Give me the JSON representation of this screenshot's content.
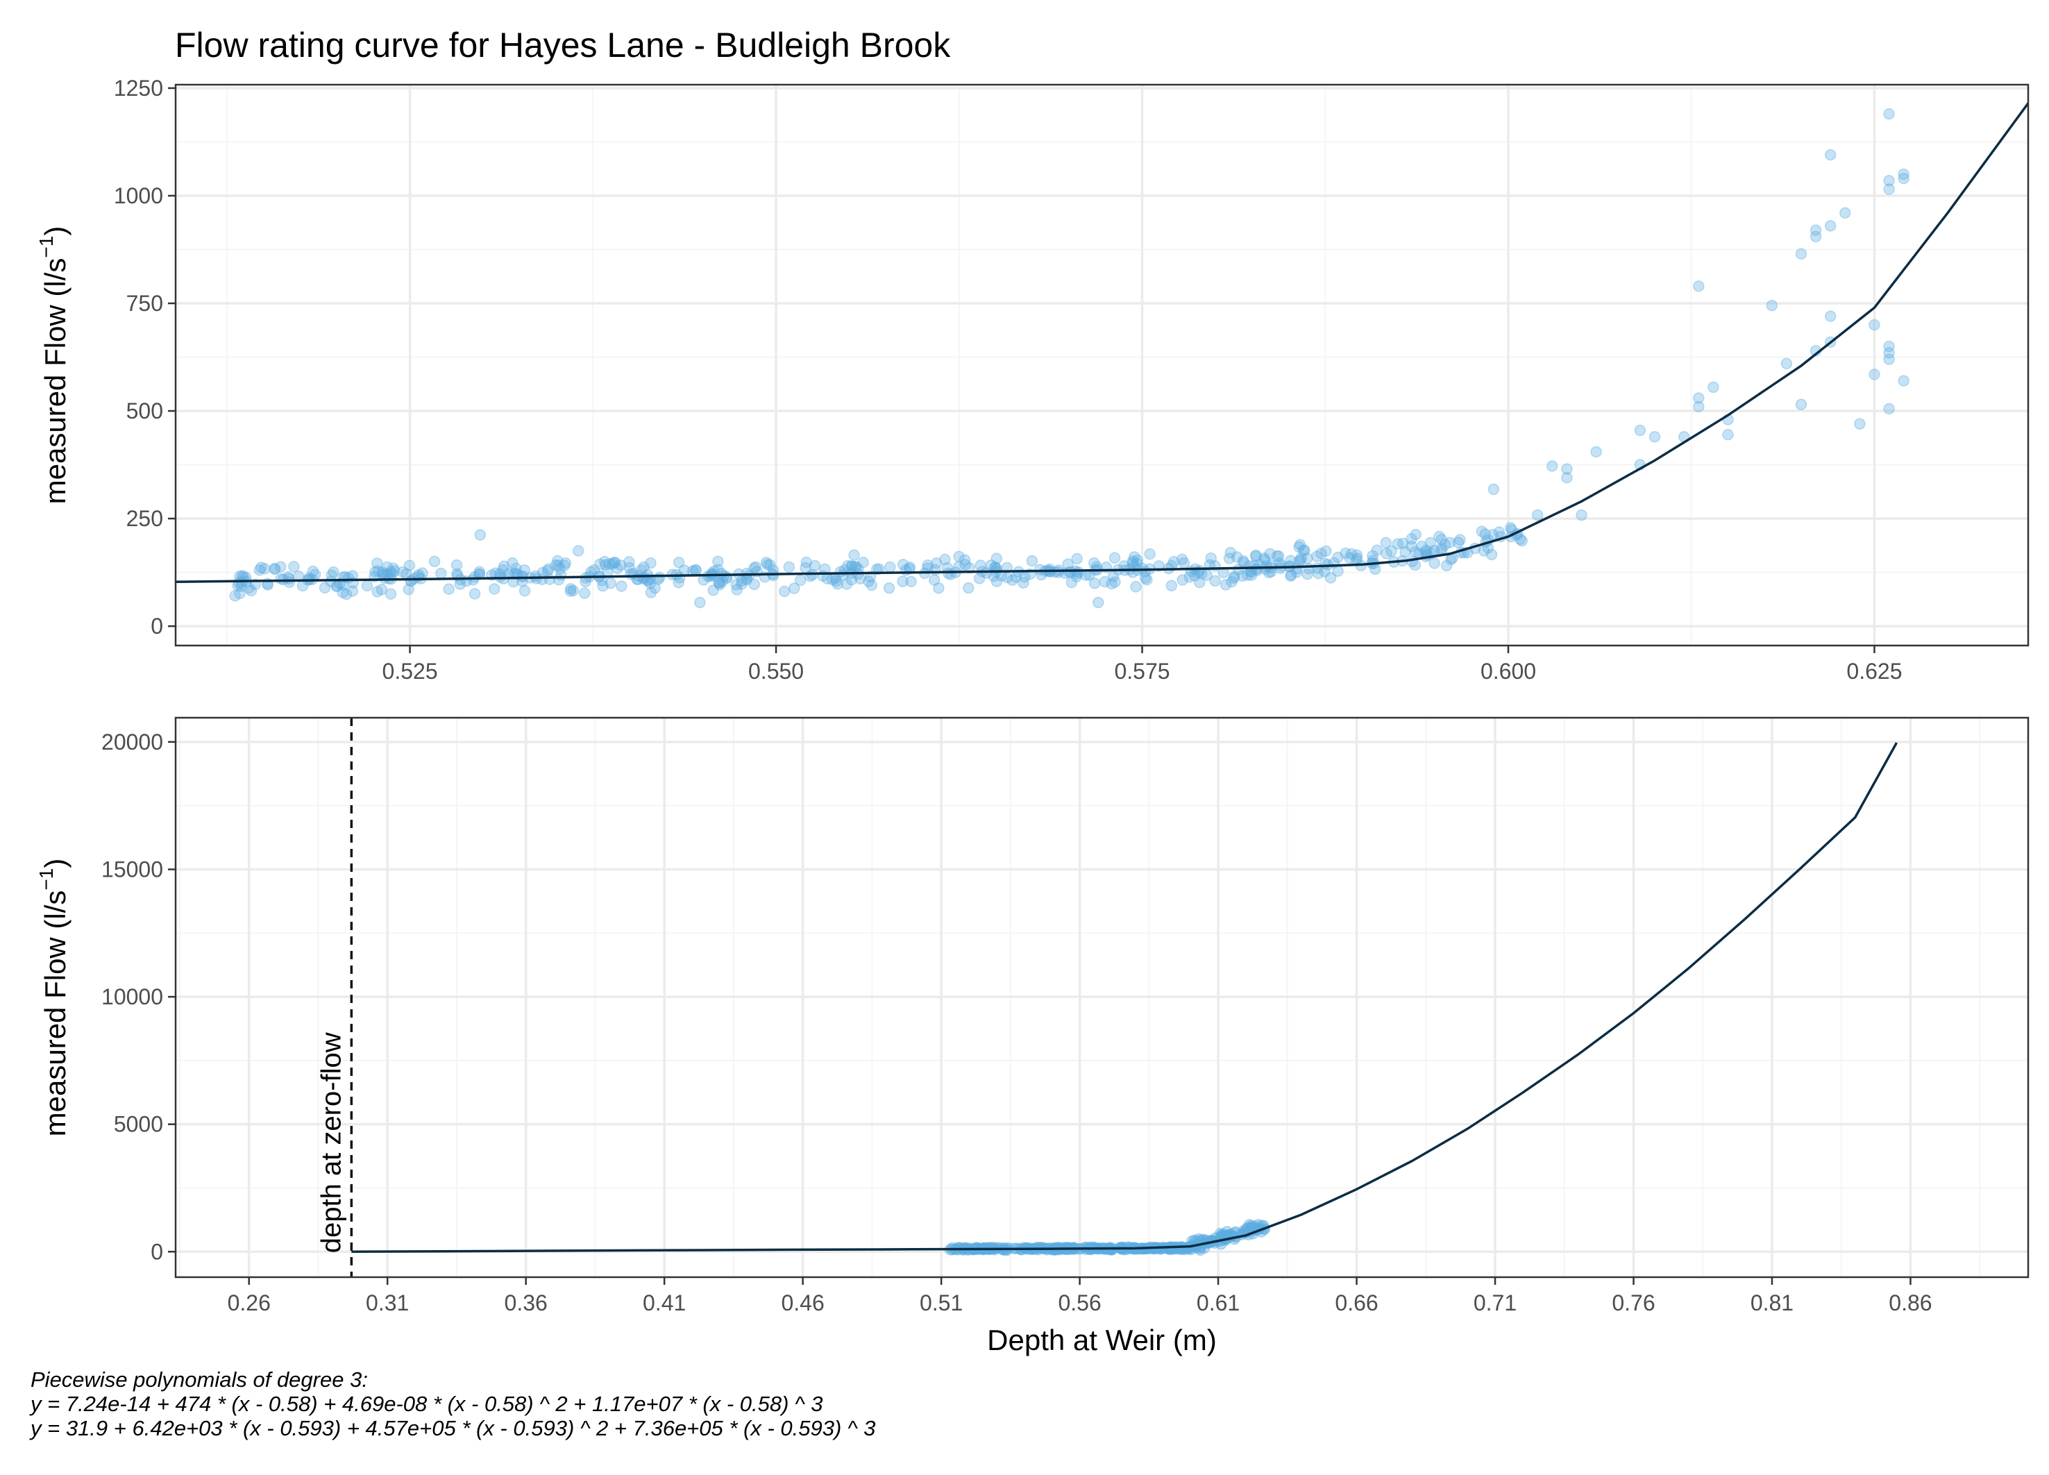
{
  "title": "Flow rating curve for Hayes Lane - Budleigh Brook",
  "caption": {
    "heading": "Piecewise polynomials of degree 3:",
    "line1": "y = 7.24e-14 + 474 * (x - 0.58) + 4.69e-08 * (x - 0.58) ^ 2 + 1.17e+07 * (x - 0.58) ^ 3",
    "line2": "y = 31.9 + 6.42e+03 * (x - 0.593) + 4.57e+05 * (x - 0.593) ^ 2 + 7.36e+05 * (x - 0.593) ^ 3"
  },
  "colors": {
    "points": "#5DADE2",
    "curve": "#0B2D45",
    "grid_major": "#EBEBEB",
    "grid_minor": "#F5F5F5",
    "border": "#333333"
  },
  "chart_data": [
    {
      "type": "scatter",
      "panel": "top",
      "ylabel": "measured Flow",
      "ylabel_unit": "(l/s",
      "ylabel_exp": "−1",
      "ylabel_close": ")",
      "xlabel": "",
      "xlim": [
        0.509,
        0.6355
      ],
      "ylim": [
        -45,
        1258
      ],
      "xticks": [
        0.525,
        0.55,
        0.575,
        0.6,
        0.625
      ],
      "xtick_labels": [
        "0.525",
        "0.550",
        "0.575",
        "0.600",
        "0.625"
      ],
      "yticks": [
        0,
        250,
        500,
        750,
        1000,
        1250
      ],
      "ytick_labels": [
        "0",
        "250",
        "500",
        "750",
        "1000",
        "1250"
      ],
      "grid": true,
      "curve": {
        "x": [
          0.509,
          0.52,
          0.53,
          0.54,
          0.55,
          0.56,
          0.57,
          0.575,
          0.58,
          0.585,
          0.59,
          0.593,
          0.596,
          0.6,
          0.605,
          0.61,
          0.615,
          0.62,
          0.625,
          0.63,
          0.6355
        ],
        "y": [
          103,
          107,
          111,
          116,
          121,
          125,
          129,
          131,
          134,
          137,
          143,
          152,
          168,
          208,
          290,
          385,
          490,
          605,
          740,
          960,
          1215
        ]
      },
      "points_band": {
        "x_from": 0.513,
        "x_to": 0.601,
        "y_center": [
          [
            0.513,
            112
          ],
          [
            0.55,
            120
          ],
          [
            0.58,
            132
          ],
          [
            0.595,
            175
          ],
          [
            0.601,
            200
          ]
        ],
        "spread": 45
      },
      "points_outliers": [
        [
          0.5298,
          212
        ],
        [
          0.5365,
          175
        ],
        [
          0.5448,
          55
        ],
        [
          0.572,
          55
        ],
        [
          0.599,
          318
        ],
        [
          0.602,
          258
        ],
        [
          0.603,
          372
        ],
        [
          0.604,
          365
        ],
        [
          0.604,
          345
        ],
        [
          0.605,
          258
        ],
        [
          0.606,
          405
        ],
        [
          0.609,
          455
        ],
        [
          0.609,
          375
        ],
        [
          0.61,
          440
        ],
        [
          0.612,
          440
        ],
        [
          0.613,
          790
        ],
        [
          0.613,
          530
        ],
        [
          0.613,
          510
        ],
        [
          0.614,
          555
        ],
        [
          0.615,
          480
        ],
        [
          0.615,
          445
        ],
        [
          0.618,
          745
        ],
        [
          0.619,
          610
        ],
        [
          0.62,
          515
        ],
        [
          0.62,
          865
        ],
        [
          0.621,
          920
        ],
        [
          0.621,
          905
        ],
        [
          0.621,
          640
        ],
        [
          0.622,
          1095
        ],
        [
          0.622,
          930
        ],
        [
          0.622,
          720
        ],
        [
          0.622,
          660
        ],
        [
          0.623,
          960
        ],
        [
          0.624,
          470
        ],
        [
          0.625,
          700
        ],
        [
          0.625,
          585
        ],
        [
          0.626,
          1190
        ],
        [
          0.626,
          1035
        ],
        [
          0.626,
          1015
        ],
        [
          0.626,
          650
        ],
        [
          0.626,
          635
        ],
        [
          0.626,
          620
        ],
        [
          0.626,
          505
        ],
        [
          0.627,
          1050
        ],
        [
          0.627,
          1040
        ],
        [
          0.627,
          570
        ]
      ]
    },
    {
      "type": "line",
      "panel": "bottom",
      "ylabel": "measured Flow",
      "ylabel_unit": "(l/s",
      "ylabel_exp": "−1",
      "ylabel_close": ")",
      "xlabel": "Depth at Weir (m)",
      "xlim": [
        0.2335,
        0.9025
      ],
      "ylim": [
        -1000,
        20950
      ],
      "xticks": [
        0.26,
        0.31,
        0.36,
        0.41,
        0.46,
        0.51,
        0.56,
        0.61,
        0.66,
        0.71,
        0.76,
        0.81,
        0.86
      ],
      "xtick_labels": [
        "0.26",
        "0.31",
        "0.36",
        "0.41",
        "0.46",
        "0.51",
        "0.56",
        "0.61",
        "0.66",
        "0.71",
        "0.76",
        "0.81",
        "0.86"
      ],
      "yticks": [
        0,
        5000,
        10000,
        15000,
        20000
      ],
      "ytick_labels": [
        "0",
        "5000",
        "10000",
        "15000",
        "20000"
      ],
      "grid": true,
      "vline": {
        "x": 0.297,
        "style": "dashed",
        "label": "depth at zero-flow"
      },
      "curve": {
        "x": [
          0.297,
          0.35,
          0.4,
          0.45,
          0.5,
          0.55,
          0.58,
          0.6,
          0.62,
          0.64,
          0.66,
          0.68,
          0.7,
          0.72,
          0.74,
          0.76,
          0.78,
          0.8,
          0.82,
          0.84,
          0.855
        ],
        "y": [
          0,
          25,
          50,
          75,
          95,
          115,
          134,
          208,
          640,
          1450,
          2450,
          3560,
          4820,
          6240,
          7740,
          9360,
          11130,
          13030,
          15010,
          17040,
          19970
        ]
      },
      "points_band": {
        "x_from": 0.513,
        "x_to": 0.627
      }
    }
  ]
}
